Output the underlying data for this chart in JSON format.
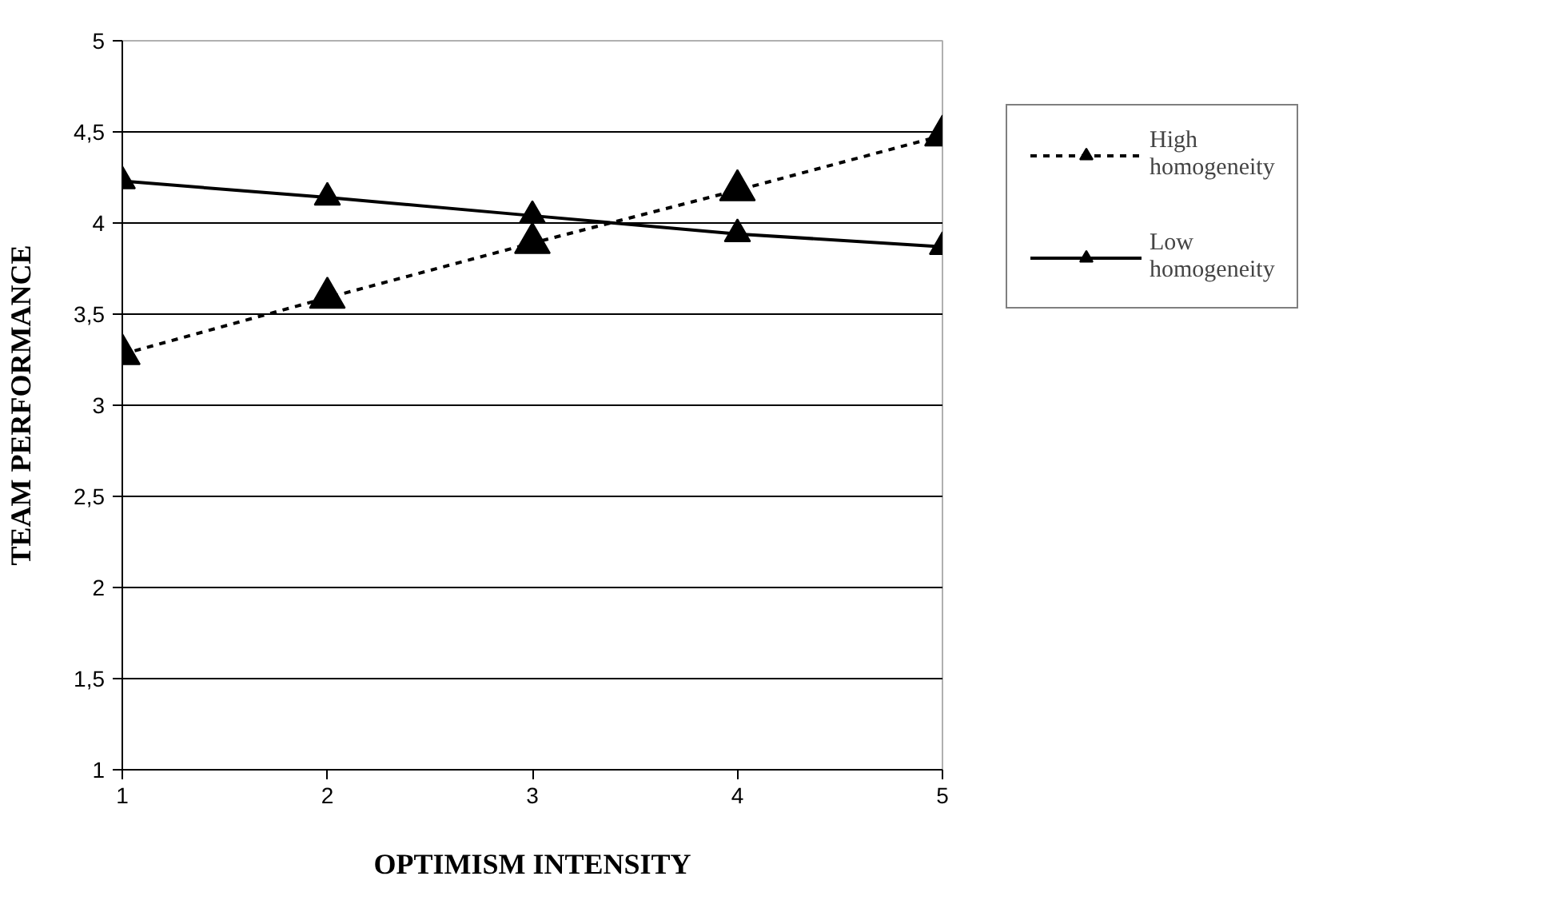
{
  "chart_data": {
    "type": "line",
    "xlabel": "OPTIMISM INTENSITY",
    "ylabel": "TEAM PERFORMANCE",
    "x": [
      1,
      2,
      3,
      4,
      5
    ],
    "xlim": [
      1,
      5
    ],
    "xticks": [
      1,
      2,
      3,
      4,
      5
    ],
    "ylim": [
      1,
      5
    ],
    "yticks": [
      1,
      {
        "value": 1.5,
        "label": "1,5"
      },
      2,
      {
        "value": 2.5,
        "label": "2,5"
      },
      3,
      {
        "value": 3.5,
        "label": "3,5"
      },
      4,
      {
        "value": 4.5,
        "label": "4,5"
      },
      5
    ],
    "grid": "y",
    "legend": "right",
    "marker": "triangle",
    "series": [
      {
        "name": "High homogeneity",
        "color": "#000000",
        "line_style": "dashed",
        "values": [
          3.28,
          3.59,
          3.89,
          4.18,
          4.48
        ]
      },
      {
        "name": "Low homogeneity",
        "color": "#000000",
        "line_style": "solid",
        "values": [
          4.23,
          4.14,
          4.04,
          3.94,
          3.87
        ]
      }
    ]
  }
}
